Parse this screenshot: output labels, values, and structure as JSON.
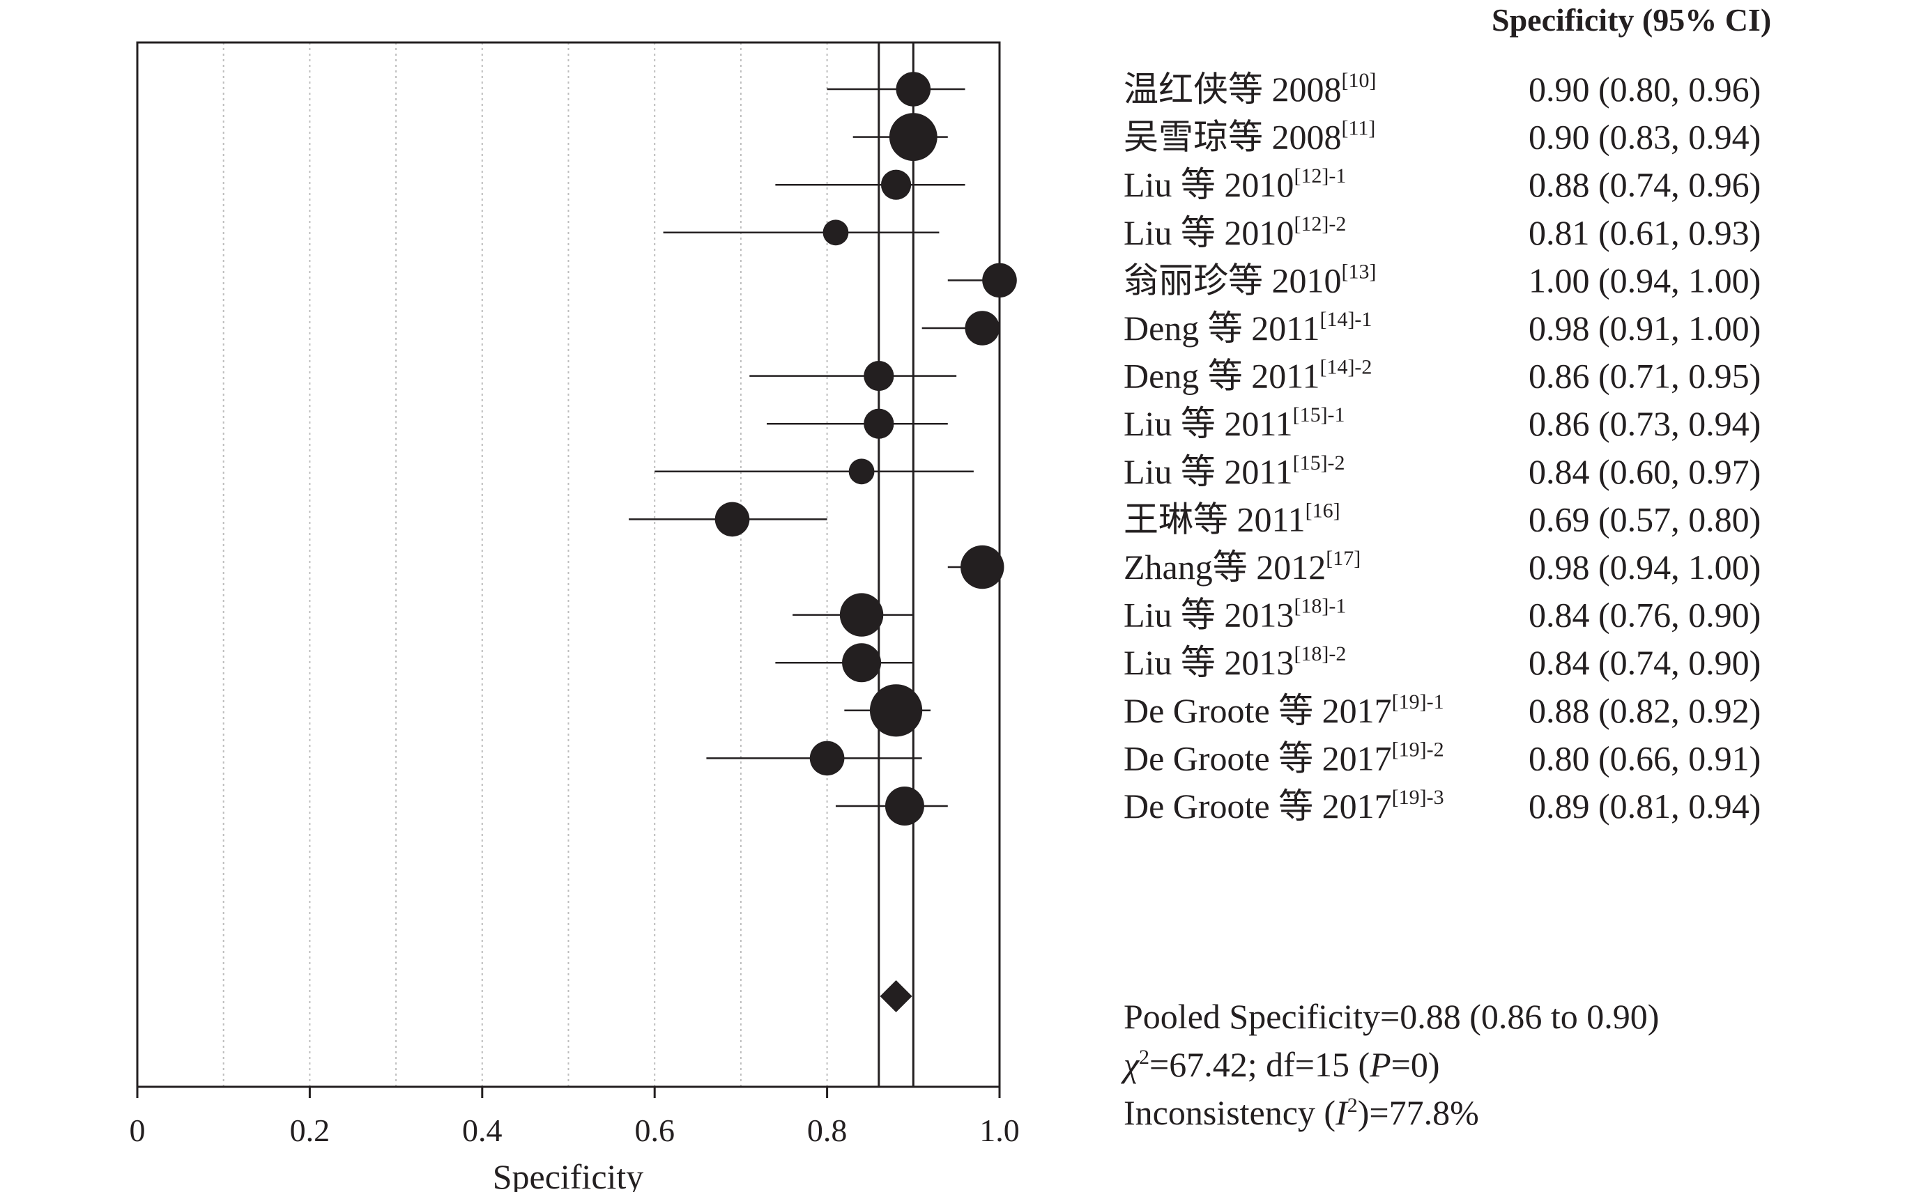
{
  "chart_data": {
    "type": "forest",
    "column_header": "Specificity (95% CI)",
    "xlabel": "Specificity",
    "xlim": [
      0,
      1.0
    ],
    "xticks": [
      "0",
      "0.2",
      "0.4",
      "0.6",
      "0.8",
      "1.0"
    ],
    "grid": "vertical dotted lines every 0.1",
    "studies": [
      {
        "label": "温红侠等 2008",
        "ref": "[10]",
        "estimate": 0.9,
        "lower": 0.8,
        "upper": 0.96,
        "ci_text": "0.90 (0.80, 0.96)",
        "weight": 4
      },
      {
        "label": "吴雪琼等 2008",
        "ref": "[11]",
        "estimate": 0.9,
        "lower": 0.83,
        "upper": 0.94,
        "ci_text": "0.90 (0.83, 0.94)",
        "weight": 7
      },
      {
        "label": "Liu 等 2010",
        "ref": "[12]-1",
        "estimate": 0.88,
        "lower": 0.74,
        "upper": 0.96,
        "ci_text": "0.88 (0.74, 0.96)",
        "weight": 3
      },
      {
        "label": "Liu 等 2010",
        "ref": "[12]-2",
        "estimate": 0.81,
        "lower": 0.61,
        "upper": 0.93,
        "ci_text": "0.81 (0.61, 0.93)",
        "weight": 2
      },
      {
        "label": "翁丽珍等 2010",
        "ref": "[13]",
        "estimate": 1.0,
        "lower": 0.94,
        "upper": 1.0,
        "ci_text": "1.00 (0.94, 1.00)",
        "weight": 4
      },
      {
        "label": "Deng 等 2011",
        "ref": "[14]-1",
        "estimate": 0.98,
        "lower": 0.91,
        "upper": 1.0,
        "ci_text": "0.98 (0.91, 1.00)",
        "weight": 4
      },
      {
        "label": "Deng 等 2011",
        "ref": "[14]-2",
        "estimate": 0.86,
        "lower": 0.71,
        "upper": 0.95,
        "ci_text": "0.86 (0.71, 0.95)",
        "weight": 3
      },
      {
        "label": "Liu 等 2011",
        "ref": "[15]-1",
        "estimate": 0.86,
        "lower": 0.73,
        "upper": 0.94,
        "ci_text": "0.86 (0.73, 0.94)",
        "weight": 3
      },
      {
        "label": "Liu 等 2011",
        "ref": "[15]-2",
        "estimate": 0.84,
        "lower": 0.6,
        "upper": 0.97,
        "ci_text": "0.84 (0.60, 0.97)",
        "weight": 2
      },
      {
        "label": "王琳等 2011",
        "ref": "[16]",
        "estimate": 0.69,
        "lower": 0.57,
        "upper": 0.8,
        "ci_text": "0.69 (0.57, 0.80)",
        "weight": 4
      },
      {
        "label": "Zhang等 2012",
        "ref": "[17]",
        "estimate": 0.98,
        "lower": 0.94,
        "upper": 1.0,
        "ci_text": "0.98 (0.94, 1.00)",
        "weight": 6
      },
      {
        "label": "Liu 等 2013",
        "ref": "[18]-1",
        "estimate": 0.84,
        "lower": 0.76,
        "upper": 0.9,
        "ci_text": "0.84 (0.76, 0.90)",
        "weight": 6
      },
      {
        "label": "Liu 等 2013",
        "ref": "[18]-2",
        "estimate": 0.84,
        "lower": 0.74,
        "upper": 0.9,
        "ci_text": "0.84 (0.74, 0.90)",
        "weight": 5
      },
      {
        "label": "De Groote 等 2017",
        "ref": "[19]-1",
        "estimate": 0.88,
        "lower": 0.82,
        "upper": 0.92,
        "ci_text": "0.88 (0.82, 0.92)",
        "weight": 8
      },
      {
        "label": "De Groote 等 2017",
        "ref": "[19]-2",
        "estimate": 0.8,
        "lower": 0.66,
        "upper": 0.91,
        "ci_text": "0.80 (0.66, 0.91)",
        "weight": 4
      },
      {
        "label": "De Groote 等 2017",
        "ref": "[19]-3",
        "estimate": 0.89,
        "lower": 0.81,
        "upper": 0.94,
        "ci_text": "0.89 (0.81, 0.94)",
        "weight": 5
      }
    ],
    "pooled": {
      "estimate": 0.88,
      "lower": 0.86,
      "upper": 0.9
    },
    "stats": {
      "pooled_line": "Pooled Specificity=0.88 (0.86 to 0.90)",
      "chi_symbol": "χ",
      "chi_sup": "2",
      "chi_rest": "=67.42; df=15 (",
      "chi_p": "P",
      "chi_end": "=0)",
      "incons_pre": "Inconsistency (",
      "incons_i": "I",
      "incons_sup": "2",
      "incons_end": ")=77.8%"
    },
    "colors": {
      "ink": "#231f20",
      "grid": "#bdbdbd"
    }
  }
}
